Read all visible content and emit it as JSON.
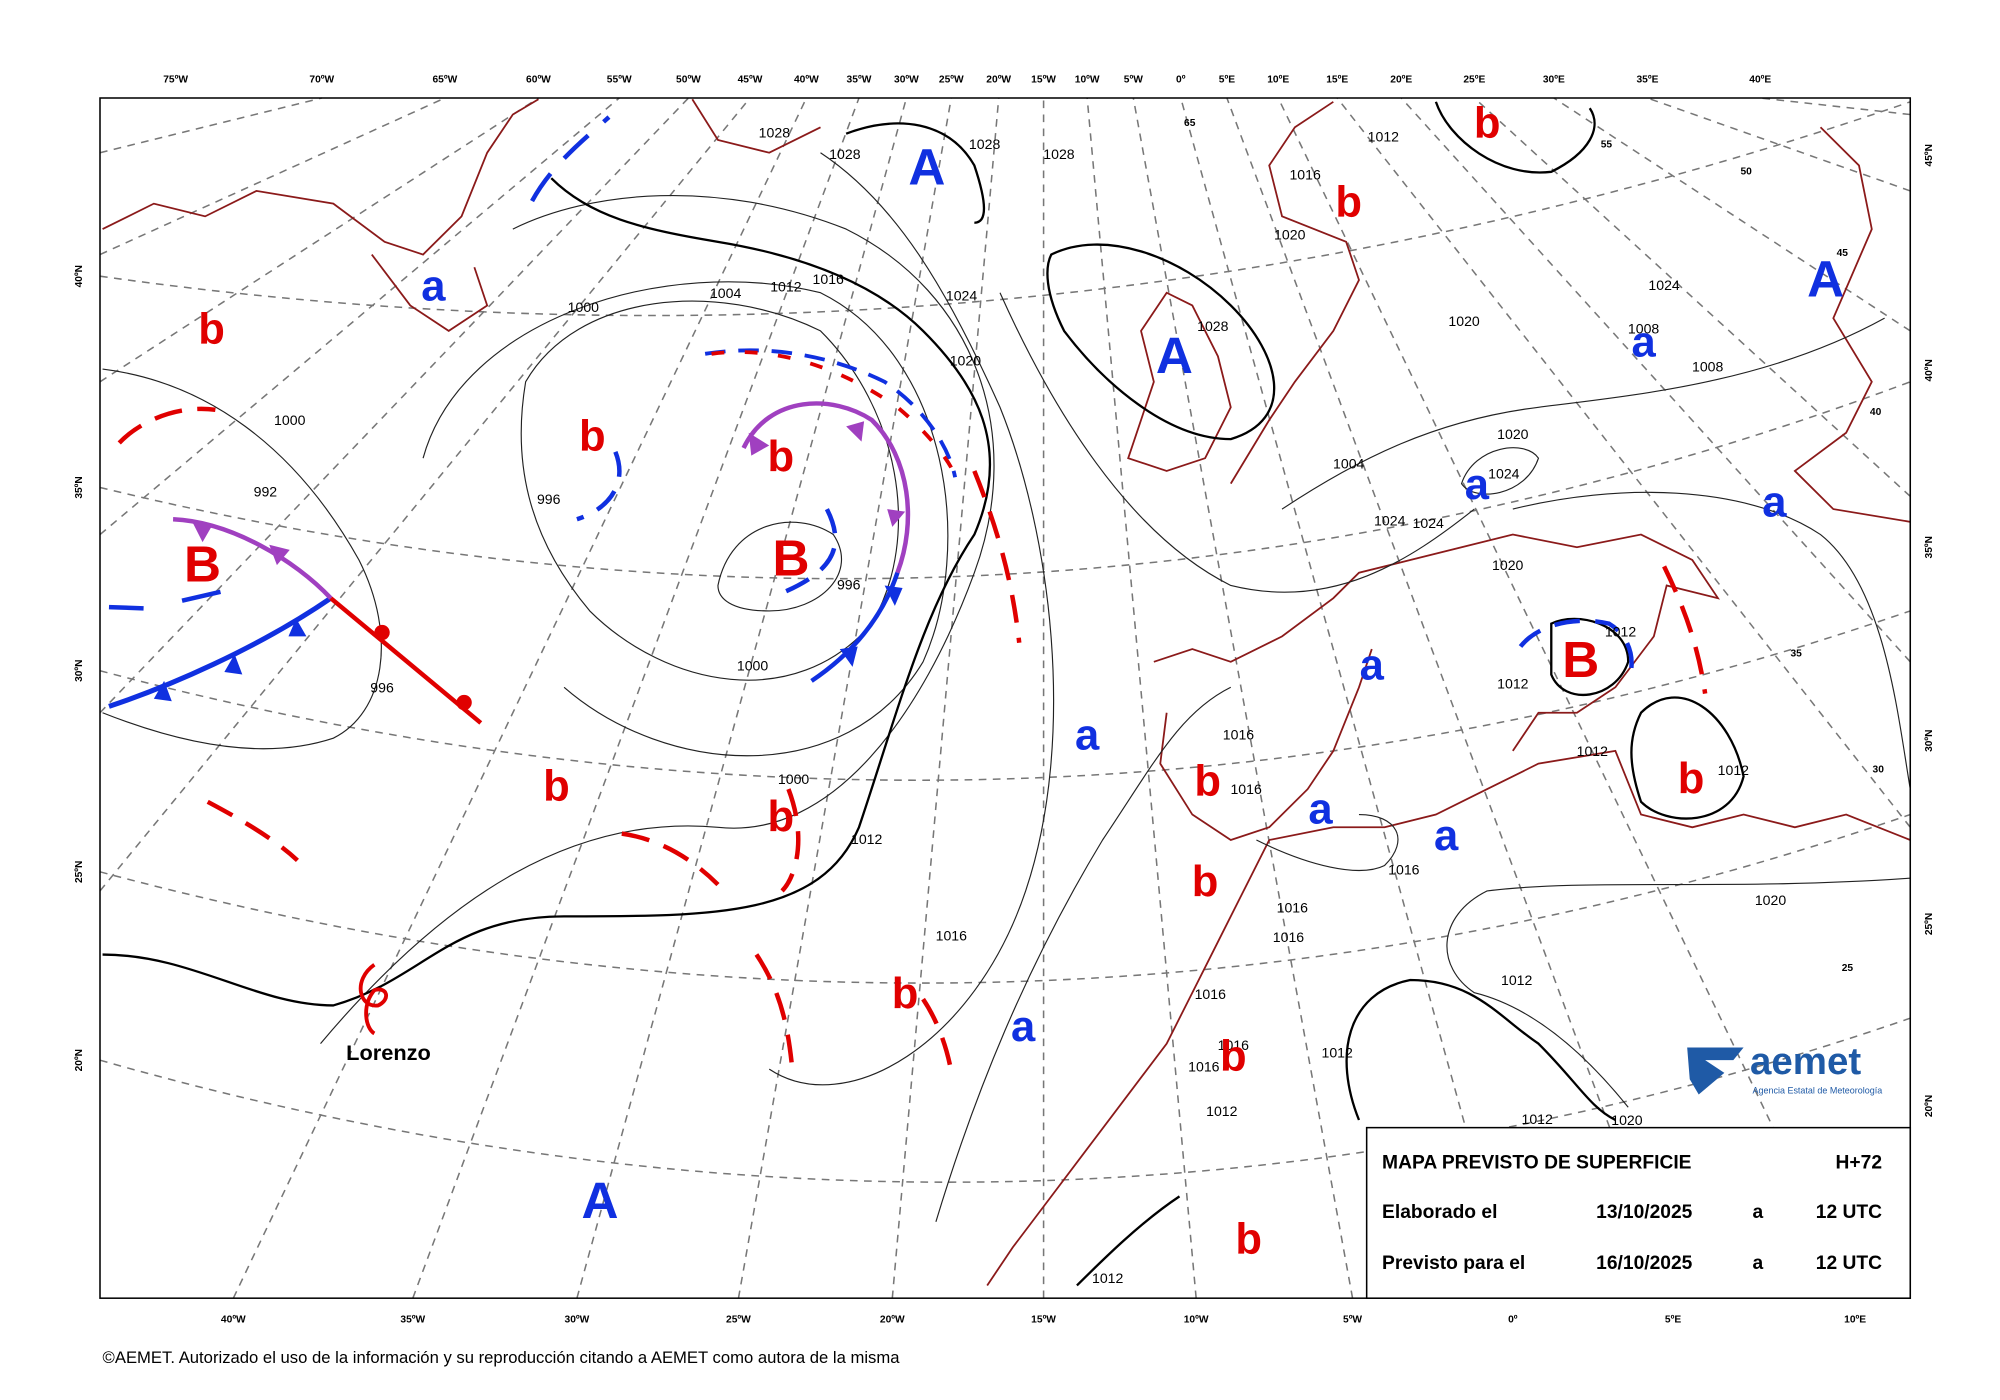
{
  "top_labels": [
    "75ºW",
    "70ºW",
    "65ºW",
    "60ºW",
    "55ºW",
    "50ºW",
    "45ºW",
    "40ºW",
    "35ºW",
    "30ºW",
    "25ºW",
    "20ºW",
    "15ºW",
    "10ºW",
    "5ºW",
    "0º",
    "5ºE",
    "10ºE",
    "15ºE",
    "20ºE",
    "25ºE",
    "30ºE",
    "35ºE",
    "40ºE"
  ],
  "bottom_labels": [
    "40ºW",
    "35ºW",
    "30ºW",
    "25ºW",
    "20ºW",
    "15ºW",
    "10ºW",
    "5ºW",
    "0º",
    "5ºE",
    "10ºE"
  ],
  "left_labels": [
    "40ºN",
    "35ºN",
    "30ºN",
    "25ºN",
    "20ºN"
  ],
  "right_labels": [
    "45ºN",
    "40ºN",
    "35ºN",
    "30ºN",
    "25ºN",
    "20ºN"
  ],
  "graticule_labels": [
    "65",
    "55",
    "50",
    "45",
    "40",
    "35",
    "30",
    "25"
  ],
  "high_centers": [
    "A",
    "A",
    "A",
    "A"
  ],
  "low_centers": [
    "B",
    "B",
    "B"
  ],
  "relative_highs": [
    "a",
    "a",
    "a",
    "a",
    "a",
    "a",
    "a",
    "a",
    "a"
  ],
  "relative_lows": [
    "b",
    "b",
    "b",
    "b",
    "b",
    "b",
    "b",
    "b",
    "b",
    "b",
    "b",
    "b",
    "b"
  ],
  "isobar_labels": [
    "1028",
    "1028",
    "1028",
    "1028",
    "1028",
    "1012",
    "1012",
    "1012",
    "1012",
    "1012",
    "1012",
    "1012",
    "1012",
    "1012",
    "1012",
    "1012",
    "1012",
    "1016",
    "1016",
    "1016",
    "1016",
    "1016",
    "1016",
    "1016",
    "1016",
    "1016",
    "1016",
    "1016",
    "1020",
    "1020",
    "1020",
    "1020",
    "1020",
    "1020",
    "1020",
    "1024",
    "1024",
    "1024",
    "1024",
    "1024",
    "1008",
    "1008",
    "1004",
    "1004",
    "1000",
    "1000",
    "1000",
    "1000",
    "996",
    "996",
    "996",
    "992"
  ],
  "storm_name": "Lorenzo",
  "info_box": {
    "title": "MAPA PREVISTO DE SUPERFICIE",
    "lead_time": "H+72",
    "rows": [
      [
        "Elaborado el",
        "13/10/2025",
        "a",
        "12 UTC"
      ],
      [
        "Previsto para el",
        "16/10/2025",
        "a",
        "12 UTC"
      ]
    ]
  },
  "logo": {
    "name": "aemet",
    "subtitle": "Agencia Estatal de Meteorología"
  },
  "copyright": "©AEMET. Autorizado el uso de la información y su reproducción citando a AEMET como autora de la misma"
}
